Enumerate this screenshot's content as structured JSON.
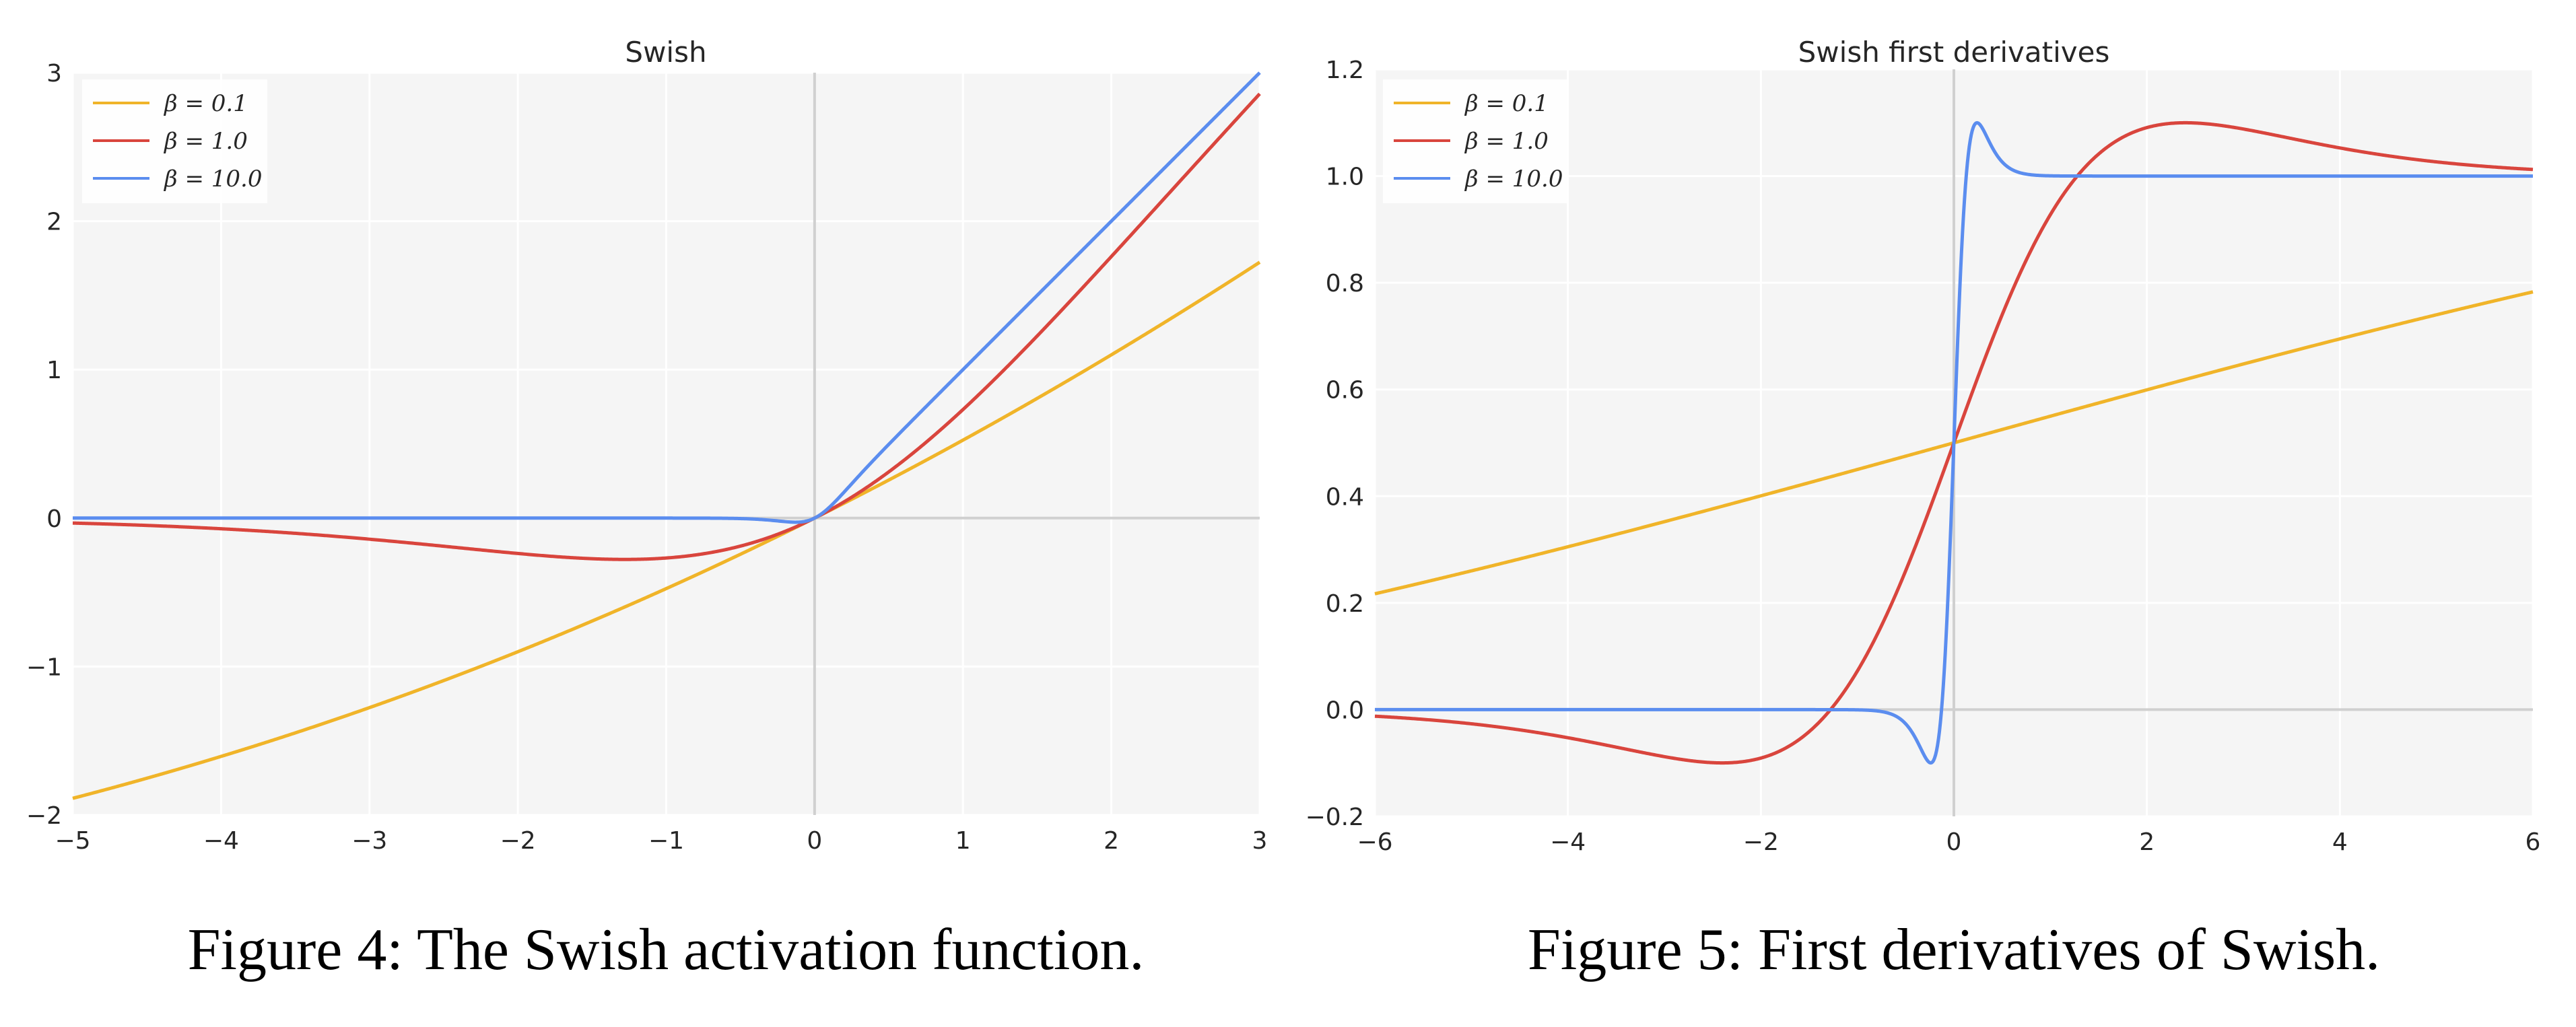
{
  "chart_data": [
    {
      "type": "line",
      "function": "swish",
      "title": "Swish",
      "xlabel": "",
      "ylabel": "",
      "xlim": [
        -5,
        3
      ],
      "ylim": [
        -2,
        3
      ],
      "xticks": [
        -5,
        -4,
        -3,
        -2,
        -1,
        0,
        1,
        2,
        3
      ],
      "yticks": [
        -2,
        -1,
        0,
        1,
        2,
        3
      ],
      "xtick_labels": [
        "−5",
        "−4",
        "−3",
        "−2",
        "−1",
        "0",
        "1",
        "2",
        "3"
      ],
      "ytick_labels": [
        "−2",
        "−1",
        "0",
        "1",
        "2",
        "3"
      ],
      "grid": true,
      "legend_position": "top-left",
      "series": [
        {
          "name": "β = 0.1",
          "beta": 0.1,
          "color": "#f0b429",
          "points": [
            [
              -5,
              -1.88
            ],
            [
              -4,
              -1.6
            ],
            [
              -3,
              -1.28
            ],
            [
              -2,
              -0.9
            ],
            [
              -1,
              -0.48
            ],
            [
              0,
              0.0
            ],
            [
              1,
              0.52
            ],
            [
              2,
              1.1
            ],
            [
              3,
              1.72
            ]
          ]
        },
        {
          "name": "β = 1.0",
          "beta": 1.0,
          "color": "#d9453d",
          "points": [
            [
              -5,
              -0.03
            ],
            [
              -4,
              -0.07
            ],
            [
              -3,
              -0.14
            ],
            [
              -2,
              -0.24
            ],
            [
              -1.28,
              -0.28
            ],
            [
              -1,
              -0.27
            ],
            [
              0,
              0.0
            ],
            [
              1,
              0.73
            ],
            [
              2,
              1.76
            ],
            [
              3,
              2.86
            ]
          ]
        },
        {
          "name": "β = 10.0",
          "beta": 10.0,
          "color": "#5b8def",
          "points": [
            [
              -5,
              0.0
            ],
            [
              -1,
              0.0
            ],
            [
              -0.13,
              -0.03
            ],
            [
              0,
              0.0
            ],
            [
              0.5,
              0.5
            ],
            [
              1,
              1.0
            ],
            [
              2,
              2.0
            ],
            [
              3,
              3.0
            ]
          ]
        }
      ],
      "caption": "Figure 4: The Swish activation function."
    },
    {
      "type": "line",
      "function": "swish_derivative",
      "title": "Swish first derivatives",
      "xlabel": "",
      "ylabel": "",
      "xlim": [
        -6,
        6
      ],
      "ylim": [
        -0.2,
        1.2
      ],
      "xticks": [
        -6,
        -4,
        -2,
        0,
        2,
        4,
        6
      ],
      "yticks": [
        -0.2,
        0.0,
        0.2,
        0.4,
        0.6,
        0.8,
        1.0,
        1.2
      ],
      "xtick_labels": [
        "−6",
        "−4",
        "−2",
        "0",
        "2",
        "4",
        "6"
      ],
      "ytick_labels": [
        "−0.2",
        "0.0",
        "0.2",
        "0.4",
        "0.6",
        "0.8",
        "1.0",
        "1.2"
      ],
      "grid": true,
      "legend_position": "top-left",
      "series": [
        {
          "name": "β = 0.1",
          "beta": 0.1,
          "color": "#f0b429",
          "points": [
            [
              -6,
              0.22
            ],
            [
              -4,
              0.31
            ],
            [
              -2,
              0.4
            ],
            [
              0,
              0.5
            ],
            [
              2,
              0.6
            ],
            [
              4,
              0.69
            ],
            [
              6,
              0.78
            ]
          ]
        },
        {
          "name": "β = 1.0",
          "beta": 1.0,
          "color": "#d9453d",
          "points": [
            [
              -6,
              -0.01
            ],
            [
              -4,
              -0.05
            ],
            [
              -2.4,
              -0.1
            ],
            [
              -1.3,
              0.0
            ],
            [
              0,
              0.5
            ],
            [
              1.3,
              1.0
            ],
            [
              2.4,
              1.1
            ],
            [
              4,
              1.05
            ],
            [
              6,
              1.01
            ]
          ]
        },
        {
          "name": "β = 10.0",
          "beta": 10.0,
          "color": "#5b8def",
          "points": [
            [
              -6,
              0.0
            ],
            [
              -0.5,
              -0.01
            ],
            [
              -0.24,
              -0.1
            ],
            [
              0,
              0.5
            ],
            [
              0.24,
              1.1
            ],
            [
              0.5,
              1.01
            ],
            [
              6,
              1.0
            ]
          ]
        }
      ],
      "caption": "Figure 5: First derivatives of Swish."
    }
  ]
}
